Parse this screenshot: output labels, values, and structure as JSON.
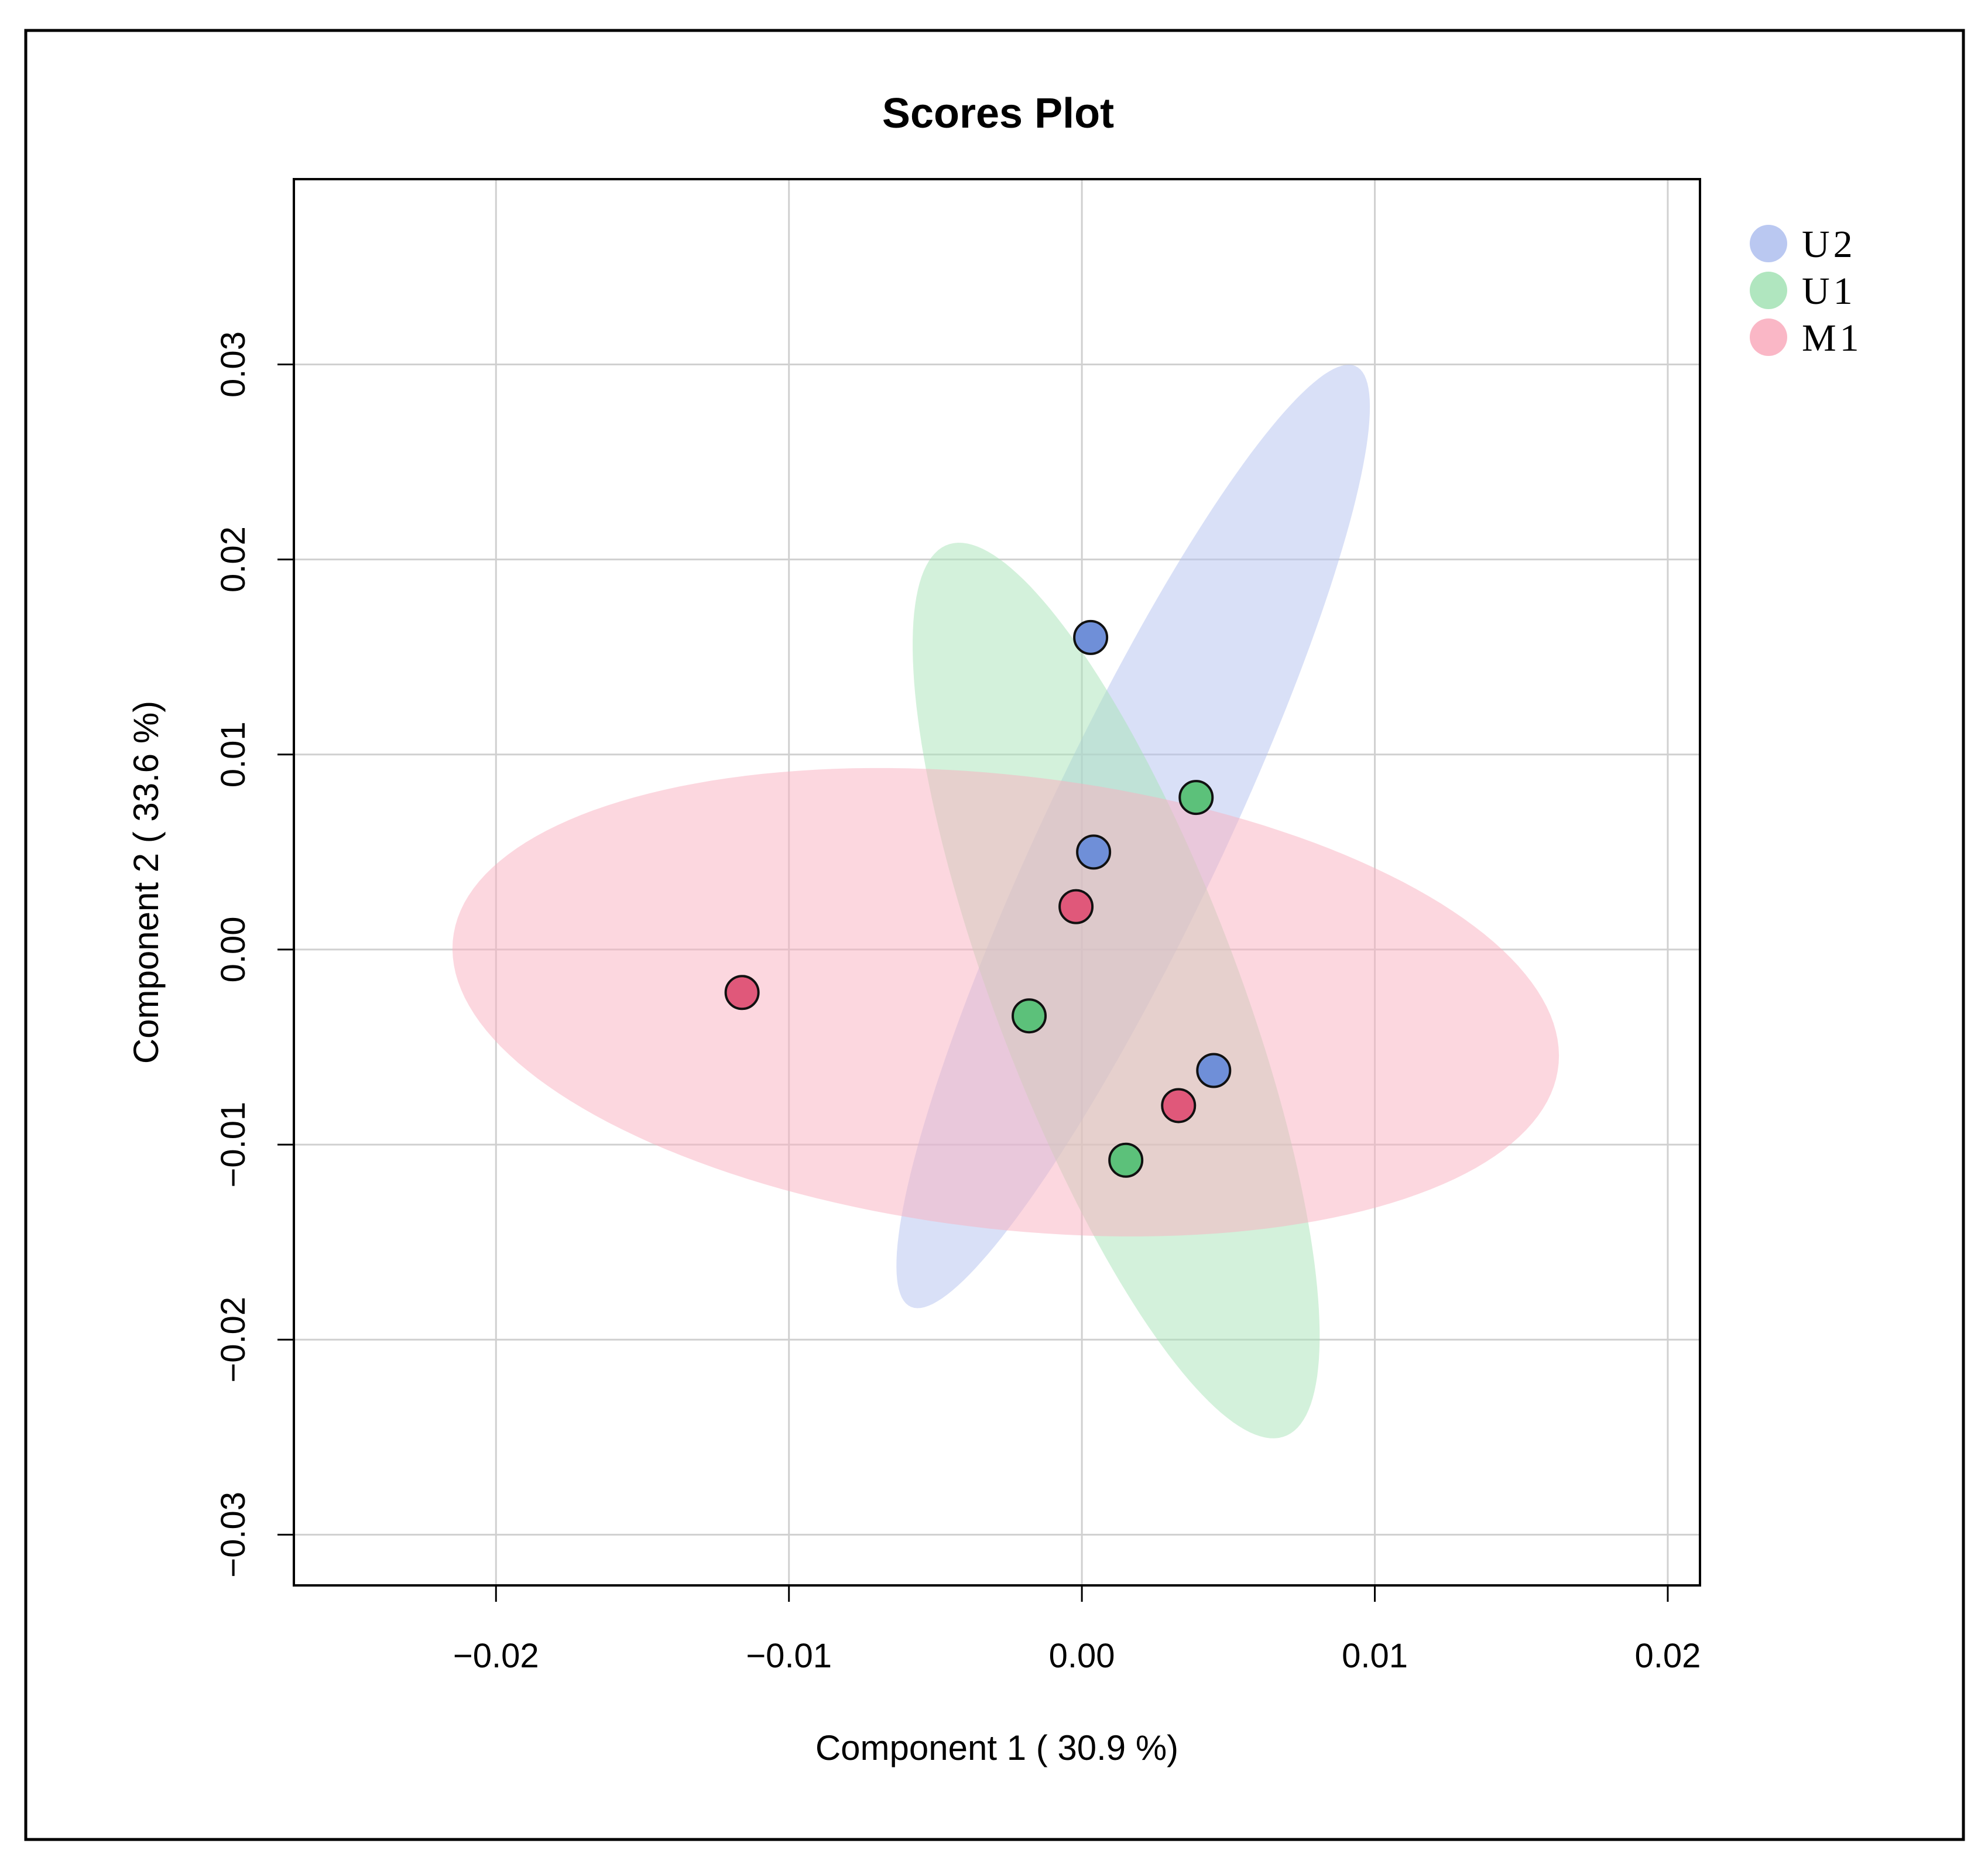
{
  "chart_data": {
    "type": "scatter",
    "title": "Scores Plot",
    "xlabel": "Component 1 ( 30.9 %)",
    "ylabel": "Component 2 ( 33.6 %)",
    "xlim": [
      -0.0269,
      0.0211
    ],
    "ylim": [
      -0.0326,
      0.0395
    ],
    "grid": true,
    "legend_position": "top-right",
    "x_ticks": [
      {
        "value": -0.02,
        "label": "−0.02"
      },
      {
        "value": -0.01,
        "label": "−0.01"
      },
      {
        "value": 0.0,
        "label": "0.00"
      },
      {
        "value": 0.01,
        "label": "0.01"
      },
      {
        "value": 0.02,
        "label": "0.02"
      }
    ],
    "y_ticks": [
      {
        "value": 0.03,
        "label": "0.03"
      },
      {
        "value": 0.02,
        "label": "0.02"
      },
      {
        "value": 0.01,
        "label": "0.01"
      },
      {
        "value": 0.0,
        "label": "0.00"
      },
      {
        "value": -0.01,
        "label": "−0.01"
      },
      {
        "value": -0.02,
        "label": "−0.02"
      },
      {
        "value": -0.03,
        "label": "−0.03"
      }
    ],
    "series": [
      {
        "name": "U2",
        "color": "#6F8FD8",
        "fill": "#B3C2F0",
        "points": [
          {
            "x": 0.0003,
            "y": 0.016
          },
          {
            "x": 0.0004,
            "y": 0.005
          },
          {
            "x": 0.0045,
            "y": -0.0062
          }
        ],
        "ellipse": {
          "cx": 0.00175,
          "cy": 0.0058,
          "rx": 0.0253,
          "ry": 0.0032,
          "angle": 72.8
        }
      },
      {
        "name": "U1",
        "color": "#5CC17A",
        "fill": "#A7E3B8",
        "points": [
          {
            "x": 0.0039,
            "y": 0.0078
          },
          {
            "x": -0.0018,
            "y": -0.0034
          },
          {
            "x": 0.0015,
            "y": -0.0108
          }
        ],
        "ellipse": {
          "cx": 0.00117,
          "cy": -0.0021,
          "rx": 0.0236,
          "ry": 0.0043,
          "angle": -76.4
        }
      },
      {
        "name": "M1",
        "color": "#E0587A",
        "fill": "#FAAFC0",
        "points": [
          {
            "x": -0.0116,
            "y": -0.0022
          },
          {
            "x": -0.0002,
            "y": 0.0022
          },
          {
            "x": 0.0033,
            "y": -0.008
          }
        ],
        "ellipse": {
          "cx": -0.0026,
          "cy": -0.0027,
          "rx": 0.0192,
          "ry": 0.0115,
          "angle": -13.0
        }
      }
    ]
  }
}
